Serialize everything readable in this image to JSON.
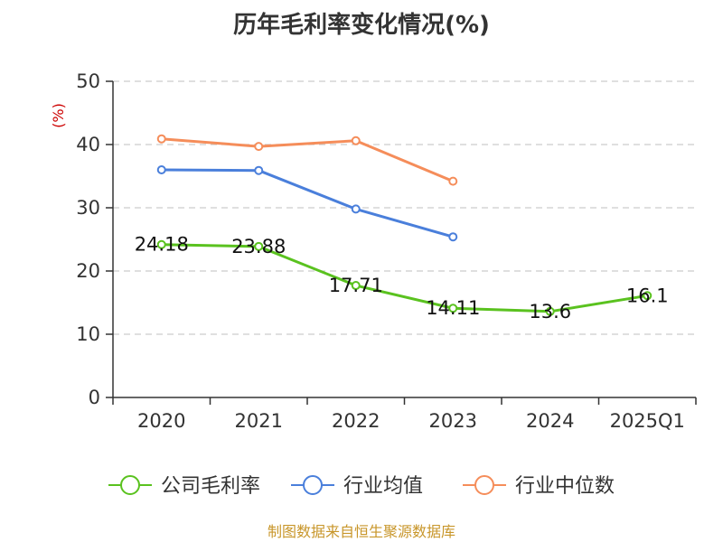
{
  "chart_data": {
    "type": "line",
    "title": "历年毛利率变化情况(%)",
    "ylabel": "(%)",
    "xlabel": "",
    "ylim": [
      0,
      50
    ],
    "yticks": [
      0,
      10,
      20,
      30,
      40,
      50
    ],
    "grid": true,
    "legend_position": "bottom",
    "categories": [
      "2020",
      "2021",
      "2022",
      "2023",
      "2024",
      "2025Q1"
    ],
    "series": [
      {
        "name": "公司毛利率",
        "color": "#5ac21f",
        "values": [
          24.18,
          23.88,
          17.71,
          14.11,
          13.6,
          16.1
        ],
        "labels": [
          "24.18",
          "23.88",
          "17.71",
          "14.11",
          "13.6",
          "16.1"
        ]
      },
      {
        "name": "行业均值",
        "color": "#4a7fdb",
        "values": [
          36.0,
          35.9,
          29.8,
          25.4,
          null,
          null
        ]
      },
      {
        "name": "行业中位数",
        "color": "#f58d5a",
        "values": [
          40.9,
          39.7,
          40.6,
          34.2,
          null,
          null
        ]
      }
    ],
    "source": "制图数据来自恒生聚源数据库",
    "colors": {
      "axis": "#333333",
      "grid": "#cccccc",
      "unit": "#cc0000",
      "source": "#c8962a"
    }
  }
}
